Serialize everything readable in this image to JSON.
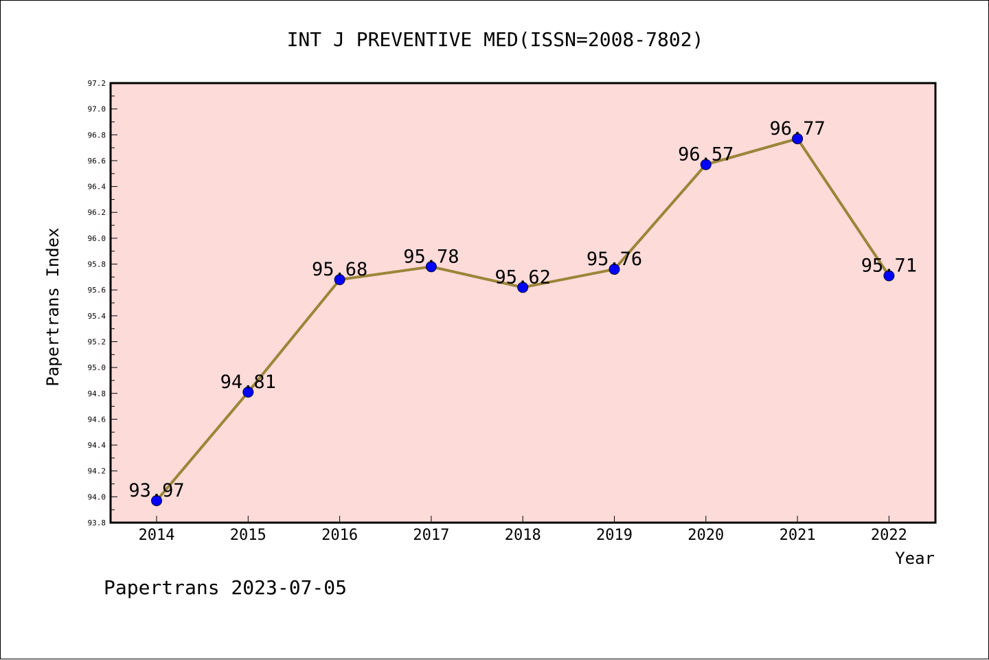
{
  "chart_data": {
    "type": "line",
    "title": "INT J PREVENTIVE MED(ISSN=2008-7802)",
    "xlabel": "Year",
    "ylabel": "Papertrans Index",
    "categories": [
      "2014",
      "2015",
      "2016",
      "2017",
      "2018",
      "2019",
      "2020",
      "2021",
      "2022"
    ],
    "series": [
      {
        "values": [
          93.97,
          94.81,
          95.68,
          95.78,
          95.62,
          95.76,
          96.57,
          96.77,
          95.71
        ]
      }
    ],
    "data_labels": [
      "93.97",
      "94.81",
      "95.68",
      "95.78",
      "95.62",
      "95.76",
      "96.57",
      "96.77",
      "95.71"
    ],
    "ylim": [
      93.8,
      97.2
    ],
    "yticks": [
      "93.8",
      "94.0",
      "94.2",
      "94.4",
      "94.6",
      "94.8",
      "95.0",
      "95.2",
      "95.4",
      "95.6",
      "95.8",
      "96.0",
      "96.2",
      "96.4",
      "96.6",
      "96.8",
      "97.0",
      "97.2"
    ],
    "grid": false,
    "colors": {
      "plot_background": "#fddbd9",
      "line": "#9b8539",
      "marker": "#0000ff",
      "axis": "#000000"
    }
  },
  "footer": "Papertrans 2023-07-05"
}
